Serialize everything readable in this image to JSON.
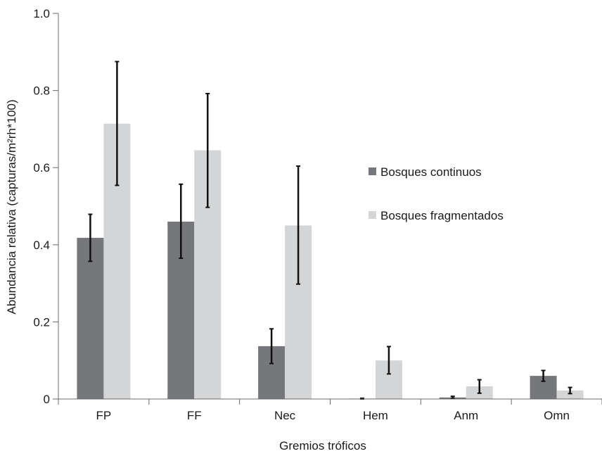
{
  "chart_data": {
    "type": "bar",
    "title": "",
    "xlabel": "Gremios tróficos",
    "ylabel": "Abundancia relativa (capturas/m²rh*100)",
    "ylim": [
      0,
      1.0
    ],
    "yticks": [
      "0",
      "0.2",
      "0.4",
      "0.6",
      "0.8",
      "1.0"
    ],
    "categories": [
      "FP",
      "FF",
      "Nec",
      "Hem",
      "Anm",
      "Omn"
    ],
    "grid": false,
    "legend_position": "right",
    "series": [
      {
        "name": "Bosques continuos",
        "color": "#76777a",
        "values": [
          0.418,
          0.46,
          0.137,
          0.001,
          0.004,
          0.06
        ],
        "error_low": [
          0.357,
          0.365,
          0.092,
          0.0,
          0.002,
          0.046
        ],
        "error_high": [
          0.479,
          0.557,
          0.182,
          0.002,
          0.007,
          0.074
        ]
      },
      {
        "name": "Bosques fragmentados",
        "color": "#d4d5d6",
        "values": [
          0.714,
          0.645,
          0.45,
          0.1,
          0.033,
          0.022
        ],
        "error_low": [
          0.554,
          0.497,
          0.298,
          0.065,
          0.015,
          0.014
        ],
        "error_high": [
          0.875,
          0.792,
          0.604,
          0.136,
          0.05,
          0.03
        ]
      }
    ]
  }
}
